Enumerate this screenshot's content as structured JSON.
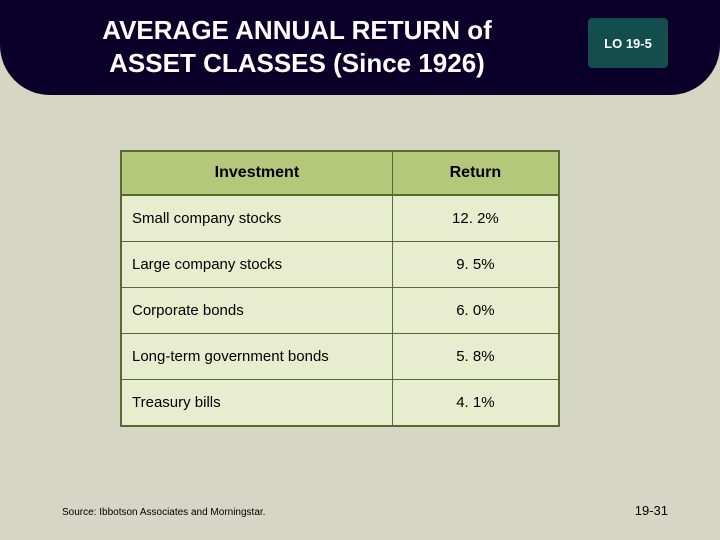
{
  "title_line1": "AVERAGE ANNUAL RETURN of",
  "title_line2": "ASSET CLASSES (Since 1926)",
  "lo_badge": "LO 19-5",
  "table": {
    "header_bg": "#b4c77a",
    "row_bg": "#e8edcf",
    "border_color": "#556b2f",
    "columns": [
      "Investment",
      "Return"
    ],
    "rows": [
      [
        "Small company stocks",
        "12. 2%"
      ],
      [
        "Large company stocks",
        "9. 5%"
      ],
      [
        "Corporate bonds",
        "6. 0%"
      ],
      [
        "Long-term government bonds",
        "5. 8%"
      ],
      [
        "Treasury bills",
        "4. 1%"
      ]
    ]
  },
  "source_text": "Source: Ibbotson Associates and Morningstar.",
  "page_number": "19-31",
  "colors": {
    "slide_bg": "#d5d6c3",
    "header_bar": "#0b0029",
    "badge_bg": "#134d4d",
    "text_white": "#ffffff"
  }
}
